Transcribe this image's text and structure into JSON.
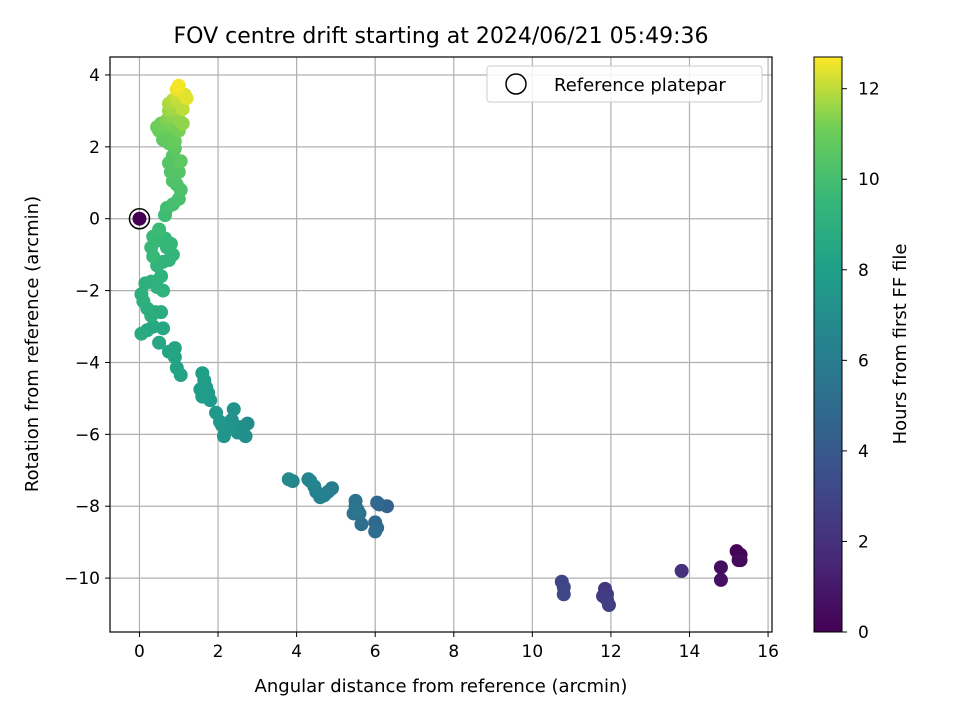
{
  "chart_data": {
    "type": "scatter",
    "title": "FOV centre drift starting at 2024/06/21 05:49:36",
    "xlabel": "Angular distance from reference (arcmin)",
    "ylabel": "Rotation from reference (arcmin)",
    "xlim": [
      -0.75,
      16.1
    ],
    "ylim": [
      -11.5,
      4.5
    ],
    "x_ticks": [
      0,
      2,
      4,
      6,
      8,
      10,
      12,
      14,
      16
    ],
    "y_ticks": [
      -10,
      -8,
      -6,
      -4,
      -2,
      0,
      2,
      4
    ],
    "grid": true,
    "legend": {
      "placement": "top-right",
      "entries": [
        "Reference platepar"
      ]
    },
    "reference_point": {
      "x": 0,
      "y": 0,
      "hours": 0
    },
    "colorbar": {
      "label": "Hours from first FF file",
      "range": [
        0,
        12.7
      ],
      "ticks": [
        0,
        2,
        4,
        6,
        8,
        10,
        12
      ],
      "colormap": "viridis"
    },
    "series": [
      {
        "points": [
          [
            15.2,
            -9.25,
            0.1
          ],
          [
            15.3,
            -9.35,
            0.2
          ],
          [
            15.25,
            -9.5,
            0.3
          ],
          [
            15.3,
            -9.5,
            0.4
          ],
          [
            14.8,
            -9.7,
            0.5
          ],
          [
            14.8,
            -10.05,
            0.6
          ],
          [
            13.8,
            -9.8,
            2.0
          ],
          [
            11.85,
            -10.3,
            2.3
          ],
          [
            11.9,
            -10.45,
            2.4
          ],
          [
            11.8,
            -10.5,
            2.5
          ],
          [
            11.9,
            -10.6,
            2.6
          ],
          [
            11.95,
            -10.75,
            2.7
          ],
          [
            10.75,
            -10.1,
            2.9
          ],
          [
            10.8,
            -10.25,
            3.0
          ],
          [
            10.8,
            -10.45,
            3.1
          ],
          [
            6.3,
            -8.0,
            4.5
          ],
          [
            6.1,
            -7.95,
            4.6
          ],
          [
            6.05,
            -7.9,
            4.7
          ],
          [
            6.0,
            -8.45,
            4.8
          ],
          [
            6.05,
            -8.6,
            4.9
          ],
          [
            6.0,
            -8.7,
            5.0
          ],
          [
            5.6,
            -8.2,
            5.1
          ],
          [
            5.65,
            -8.5,
            5.2
          ],
          [
            5.5,
            -8.0,
            5.3
          ],
          [
            5.45,
            -8.2,
            5.4
          ],
          [
            5.5,
            -7.85,
            5.5
          ],
          [
            5.55,
            -8.1,
            5.6
          ],
          [
            4.9,
            -7.5,
            6.0
          ],
          [
            4.8,
            -7.6,
            6.1
          ],
          [
            4.7,
            -7.7,
            6.2
          ],
          [
            4.6,
            -7.75,
            6.3
          ],
          [
            4.5,
            -7.6,
            6.3
          ],
          [
            4.45,
            -7.45,
            6.4
          ],
          [
            4.35,
            -7.3,
            6.5
          ],
          [
            4.3,
            -7.25,
            6.5
          ],
          [
            3.9,
            -7.3,
            6.6
          ],
          [
            3.8,
            -7.25,
            6.7
          ],
          [
            2.75,
            -5.7,
            7.0
          ],
          [
            2.7,
            -6.05,
            7.1
          ],
          [
            2.55,
            -5.8,
            7.2
          ],
          [
            2.5,
            -5.95,
            7.2
          ],
          [
            2.4,
            -5.3,
            7.3
          ],
          [
            2.35,
            -5.6,
            7.3
          ],
          [
            2.3,
            -5.85,
            7.4
          ],
          [
            2.15,
            -6.05,
            7.4
          ],
          [
            2.1,
            -5.75,
            7.5
          ],
          [
            2.05,
            -5.65,
            7.5
          ],
          [
            1.95,
            -5.4,
            7.6
          ],
          [
            1.8,
            -5.05,
            7.7
          ],
          [
            1.75,
            -4.85,
            7.7
          ],
          [
            1.7,
            -4.7,
            7.8
          ],
          [
            1.65,
            -4.5,
            7.8
          ],
          [
            1.6,
            -4.95,
            7.9
          ],
          [
            1.55,
            -4.75,
            7.9
          ],
          [
            1.6,
            -4.3,
            8.0
          ],
          [
            1.05,
            -4.35,
            8.2
          ],
          [
            0.95,
            -4.15,
            8.2
          ],
          [
            0.9,
            -3.85,
            8.3
          ],
          [
            0.9,
            -3.6,
            8.3
          ],
          [
            0.75,
            -3.7,
            8.4
          ],
          [
            0.6,
            -3.05,
            8.5
          ],
          [
            0.5,
            -3.45,
            8.5
          ],
          [
            0.35,
            -3.0,
            8.6
          ],
          [
            0.2,
            -3.1,
            8.6
          ],
          [
            0.05,
            -3.2,
            8.7
          ],
          [
            0.55,
            -2.6,
            8.8
          ],
          [
            0.4,
            -2.6,
            8.8
          ],
          [
            0.3,
            -2.7,
            8.9
          ],
          [
            0.2,
            -2.5,
            8.9
          ],
          [
            0.1,
            -2.3,
            9.0
          ],
          [
            0.05,
            -2.1,
            9.0
          ],
          [
            0.15,
            -1.8,
            9.0
          ],
          [
            0.3,
            -1.75,
            9.1
          ],
          [
            0.45,
            -1.9,
            9.1
          ],
          [
            0.6,
            -2.0,
            9.2
          ],
          [
            0.55,
            -1.6,
            9.2
          ],
          [
            0.45,
            -1.3,
            9.3
          ],
          [
            0.6,
            -1.2,
            9.3
          ],
          [
            0.75,
            -1.15,
            9.3
          ],
          [
            0.85,
            -1.0,
            9.4
          ],
          [
            0.7,
            -0.8,
            9.4
          ],
          [
            0.8,
            -0.7,
            9.5
          ],
          [
            0.65,
            -0.55,
            9.5
          ],
          [
            0.5,
            -0.6,
            9.5
          ],
          [
            0.35,
            -0.5,
            9.6
          ],
          [
            0.3,
            -0.8,
            9.6
          ],
          [
            0.35,
            -1.05,
            9.6
          ],
          [
            0.5,
            -0.3,
            9.7
          ],
          [
            0.65,
            0.1,
            9.8
          ],
          [
            0.7,
            0.3,
            9.9
          ],
          [
            0.85,
            0.4,
            10.0
          ],
          [
            1.0,
            0.55,
            10.1
          ],
          [
            1.05,
            0.8,
            10.2
          ],
          [
            0.95,
            0.95,
            10.2
          ],
          [
            0.85,
            1.05,
            10.3
          ],
          [
            1.0,
            1.3,
            10.4
          ],
          [
            0.8,
            1.3,
            10.4
          ],
          [
            0.75,
            1.55,
            10.5
          ],
          [
            0.85,
            1.75,
            10.5
          ],
          [
            1.05,
            1.6,
            10.6
          ],
          [
            0.9,
            1.95,
            10.6
          ],
          [
            0.75,
            2.1,
            10.7
          ],
          [
            0.6,
            2.2,
            10.7
          ],
          [
            0.65,
            2.35,
            10.8
          ],
          [
            0.8,
            2.25,
            10.8
          ],
          [
            0.9,
            2.15,
            10.9
          ],
          [
            0.5,
            2.45,
            10.9
          ],
          [
            0.45,
            2.55,
            11.0
          ],
          [
            0.55,
            2.65,
            11.1
          ],
          [
            0.7,
            2.55,
            11.1
          ],
          [
            0.85,
            2.6,
            11.2
          ],
          [
            1.0,
            2.45,
            11.2
          ],
          [
            0.7,
            2.75,
            11.3
          ],
          [
            0.85,
            2.85,
            11.4
          ],
          [
            1.0,
            2.75,
            11.5
          ],
          [
            1.1,
            2.65,
            11.5
          ],
          [
            0.75,
            3.0,
            11.6
          ],
          [
            0.9,
            3.05,
            11.7
          ],
          [
            0.75,
            3.2,
            11.8
          ],
          [
            0.85,
            3.3,
            11.9
          ],
          [
            1.0,
            3.25,
            12.0
          ],
          [
            1.1,
            3.05,
            12.0
          ],
          [
            0.95,
            3.4,
            12.1
          ],
          [
            1.05,
            3.5,
            12.2
          ],
          [
            1.15,
            3.45,
            12.3
          ],
          [
            1.2,
            3.35,
            12.4
          ],
          [
            0.95,
            3.6,
            12.5
          ],
          [
            1.0,
            3.7,
            12.6
          ]
        ]
      }
    ]
  }
}
